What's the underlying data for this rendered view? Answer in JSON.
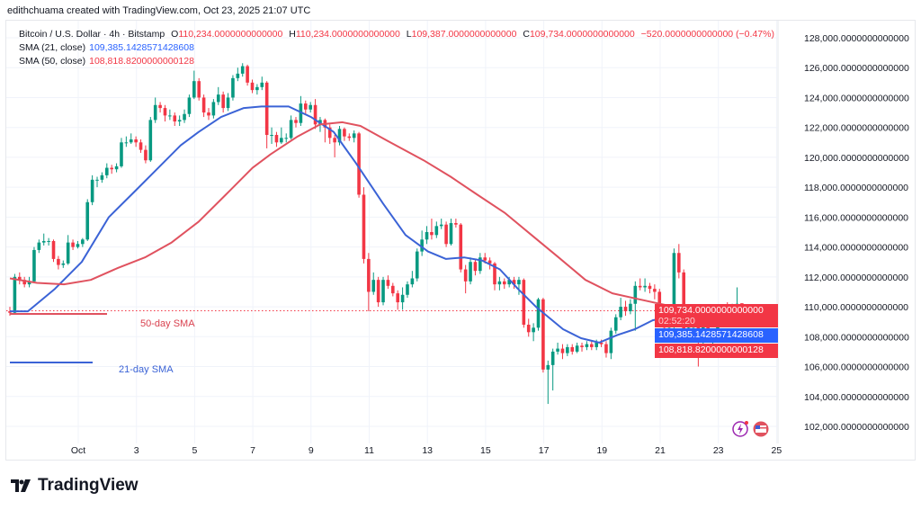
{
  "credit": "edithchuama created with TradingView.com, Oct 23, 2025 21:07 UTC",
  "legend": {
    "symbol": "Bitcoin / U.S. Dollar · 4h · Bitstamp",
    "o_label": "O",
    "o": "110,234.0000000000000",
    "h_label": "H",
    "h": "110,234.0000000000000",
    "l_label": "L",
    "l": "109,387.0000000000000",
    "c_label": "C",
    "c": "109,734.0000000000000",
    "change": "−520.0000000000000 (−0.47%)",
    "sma21_label": "SMA (21, close)",
    "sma21": "109,385.1428571428608",
    "sma50_label": "SMA (50, close)",
    "sma50": "108,818.8200000000128"
  },
  "price_boxes": {
    "last": "109,734.0000000000000",
    "countdown": "02:52:20",
    "sma21": "109,385.1428571428608",
    "sma50": "108,818.8200000000128"
  },
  "annotations": {
    "sma50": "50-day SMA",
    "sma21": "21-day SMA"
  },
  "logo": "TradingView",
  "colors": {
    "up": "#089981",
    "down": "#f23645",
    "sma21": "#3b63d6",
    "sma50": "#e0525f"
  },
  "chart_data": {
    "type": "candlestick",
    "title": "Bitcoin / U.S. Dollar · 4h · Bitstamp",
    "unit": "thousand USD",
    "interval_hours": 4,
    "first_candle_day": -1.33,
    "ylim": [
      101,
      129
    ],
    "y_ticks": [
      102,
      104,
      106,
      108,
      110,
      112,
      114,
      116,
      118,
      120,
      122,
      124,
      126,
      128
    ],
    "y_tick_labels": [
      "102,000.0000000000000",
      "104,000.0000000000000",
      "106,000.0000000000000",
      "108,000.0000000000000",
      "110,000.0000000000000",
      "112,000.0000000000000",
      "114,000.0000000000000",
      "116,000.0000000000000",
      "118,000.0000000000000",
      "120,000.0000000000000",
      "122,000.0000000000000",
      "124,000.0000000000000",
      "126,000.0000000000000",
      "128,000.0000000000000"
    ],
    "x_ticks": [
      1,
      3,
      5,
      7,
      9,
      11,
      13,
      15,
      17,
      19,
      21,
      23,
      25
    ],
    "x_tick_labels": [
      "Oct",
      "3",
      "5",
      "7",
      "9",
      "11",
      "13",
      "15",
      "17",
      "19",
      "21",
      "23",
      "25"
    ],
    "last_price": 109.734,
    "ohlc": [
      [
        109.7,
        110.0,
        109.4,
        109.6
      ],
      [
        109.6,
        112.2,
        109.5,
        112.0
      ],
      [
        112.0,
        112.3,
        111.5,
        111.8
      ],
      [
        111.8,
        112.0,
        111.3,
        111.5
      ],
      [
        111.5,
        112.0,
        111.3,
        111.7
      ],
      [
        111.7,
        114.0,
        111.6,
        113.8
      ],
      [
        113.8,
        114.5,
        113.6,
        114.3
      ],
      [
        114.3,
        114.9,
        114.1,
        114.4
      ],
      [
        114.4,
        114.6,
        114.1,
        114.4
      ],
      [
        114.4,
        114.5,
        113.0,
        113.2
      ],
      [
        113.2,
        113.4,
        112.5,
        112.8
      ],
      [
        112.8,
        113.1,
        112.6,
        112.9
      ],
      [
        112.9,
        114.8,
        112.8,
        114.3
      ],
      [
        114.3,
        114.5,
        113.8,
        114.0
      ],
      [
        114.0,
        114.4,
        113.9,
        114.2
      ],
      [
        114.2,
        114.6,
        114.0,
        114.5
      ],
      [
        114.5,
        117.2,
        114.4,
        117.0
      ],
      [
        117.0,
        118.8,
        116.8,
        118.5
      ],
      [
        118.5,
        118.7,
        118.0,
        118.5
      ],
      [
        118.5,
        119.0,
        118.3,
        118.8
      ],
      [
        118.8,
        119.6,
        118.6,
        119.3
      ],
      [
        119.3,
        119.5,
        118.9,
        119.2
      ],
      [
        119.2,
        119.6,
        119.0,
        119.4
      ],
      [
        119.4,
        121.3,
        119.3,
        121.0
      ],
      [
        121.0,
        121.4,
        120.7,
        121.0
      ],
      [
        121.0,
        121.6,
        120.9,
        121.2
      ],
      [
        121.2,
        121.4,
        120.7,
        121.0
      ],
      [
        121.0,
        121.2,
        120.3,
        120.5
      ],
      [
        120.5,
        120.8,
        119.6,
        119.8
      ],
      [
        119.8,
        122.7,
        119.7,
        122.5
      ],
      [
        122.5,
        124.0,
        122.3,
        123.5
      ],
      [
        123.5,
        123.7,
        123.0,
        123.3
      ],
      [
        123.3,
        123.5,
        122.4,
        122.8
      ],
      [
        122.8,
        123.2,
        122.5,
        122.8
      ],
      [
        122.8,
        123.0,
        122.1,
        122.4
      ],
      [
        122.4,
        122.8,
        122.1,
        122.5
      ],
      [
        122.5,
        123.2,
        122.3,
        122.9
      ],
      [
        122.9,
        124.2,
        122.7,
        124.0
      ],
      [
        124.0,
        125.8,
        123.9,
        125.1
      ],
      [
        125.1,
        125.3,
        123.8,
        124.0
      ],
      [
        124.0,
        124.2,
        122.7,
        123.0
      ],
      [
        123.0,
        123.3,
        122.5,
        122.8
      ],
      [
        122.8,
        123.9,
        122.6,
        123.7
      ],
      [
        123.7,
        124.7,
        123.5,
        124.2
      ],
      [
        124.2,
        124.4,
        123.0,
        123.3
      ],
      [
        123.3,
        124.3,
        123.1,
        124.0
      ],
      [
        124.0,
        125.5,
        123.8,
        125.3
      ],
      [
        125.3,
        126.0,
        125.1,
        125.6
      ],
      [
        125.6,
        126.3,
        125.4,
        126.1
      ],
      [
        126.1,
        126.2,
        124.8,
        125.0
      ],
      [
        125.0,
        125.2,
        124.3,
        124.5
      ],
      [
        124.5,
        124.9,
        124.2,
        124.7
      ],
      [
        124.7,
        125.4,
        124.5,
        125.0
      ],
      [
        125.0,
        125.1,
        120.6,
        121.5
      ],
      [
        121.5,
        122.0,
        120.9,
        121.5
      ],
      [
        121.5,
        121.7,
        120.7,
        121.0
      ],
      [
        121.0,
        122.0,
        120.9,
        121.3
      ],
      [
        121.3,
        121.6,
        121.0,
        121.3
      ],
      [
        121.3,
        122.8,
        121.2,
        122.5
      ],
      [
        122.5,
        122.7,
        122.0,
        122.3
      ],
      [
        122.3,
        124.1,
        122.1,
        123.6
      ],
      [
        123.6,
        123.8,
        122.9,
        123.2
      ],
      [
        123.2,
        123.7,
        123.0,
        123.5
      ],
      [
        123.5,
        123.9,
        121.9,
        122.2
      ],
      [
        122.2,
        122.7,
        121.7,
        122.5
      ],
      [
        122.5,
        122.6,
        121.0,
        122.0
      ],
      [
        122.0,
        122.2,
        120.9,
        121.3
      ],
      [
        121.3,
        121.5,
        120.0,
        121.0
      ],
      [
        121.0,
        122.1,
        120.8,
        121.9
      ],
      [
        121.9,
        122.0,
        121.1,
        121.4
      ],
      [
        121.4,
        121.6,
        121.1,
        121.3
      ],
      [
        121.3,
        121.8,
        121.0,
        121.6
      ],
      [
        121.6,
        121.7,
        117.3,
        117.5
      ],
      [
        117.5,
        118.0,
        112.9,
        113.2
      ],
      [
        113.2,
        113.6,
        109.7,
        111.0
      ],
      [
        111.0,
        112.3,
        110.8,
        111.8
      ],
      [
        111.8,
        112.0,
        110.0,
        110.3
      ],
      [
        110.3,
        112.0,
        110.1,
        111.8
      ],
      [
        111.8,
        112.1,
        111.2,
        111.4
      ],
      [
        111.4,
        111.6,
        110.7,
        110.9
      ],
      [
        110.9,
        111.1,
        109.8,
        110.3
      ],
      [
        110.3,
        111.3,
        109.8,
        110.8
      ],
      [
        110.8,
        111.7,
        110.6,
        111.5
      ],
      [
        111.5,
        112.4,
        111.3,
        111.9
      ],
      [
        111.9,
        113.9,
        111.7,
        113.7
      ],
      [
        113.7,
        115.1,
        113.4,
        114.5
      ],
      [
        114.5,
        115.4,
        114.2,
        115.0
      ],
      [
        115.0,
        115.9,
        114.5,
        114.8
      ],
      [
        114.8,
        115.7,
        114.6,
        115.4
      ],
      [
        115.4,
        115.9,
        115.2,
        115.5
      ],
      [
        115.5,
        115.7,
        114.0,
        114.2
      ],
      [
        114.2,
        115.9,
        114.1,
        115.6
      ],
      [
        115.6,
        115.9,
        115.3,
        115.5
      ],
      [
        115.5,
        115.6,
        112.3,
        112.5
      ],
      [
        112.5,
        112.8,
        110.9,
        111.7
      ],
      [
        111.7,
        113.3,
        111.5,
        113.0
      ],
      [
        113.0,
        113.2,
        112.1,
        112.4
      ],
      [
        112.4,
        113.6,
        112.2,
        113.3
      ],
      [
        113.3,
        113.6,
        112.9,
        113.1
      ],
      [
        113.1,
        113.3,
        112.5,
        112.9
      ],
      [
        112.9,
        113.0,
        111.1,
        111.5
      ],
      [
        111.5,
        112.0,
        111.1,
        111.7
      ],
      [
        111.7,
        111.9,
        111.2,
        111.5
      ],
      [
        111.5,
        112.0,
        111.3,
        111.8
      ],
      [
        111.8,
        112.0,
        111.2,
        111.5
      ],
      [
        111.5,
        112.0,
        110.8,
        111.8
      ],
      [
        111.8,
        111.9,
        108.6,
        108.8
      ],
      [
        108.8,
        109.2,
        108.0,
        108.3
      ],
      [
        108.3,
        108.9,
        107.7,
        108.6
      ],
      [
        108.6,
        110.6,
        108.4,
        110.5
      ],
      [
        110.5,
        110.6,
        105.6,
        105.8
      ],
      [
        105.8,
        106.4,
        103.5,
        106.1
      ],
      [
        106.1,
        107.2,
        104.4,
        107.0
      ],
      [
        107.0,
        107.6,
        106.8,
        107.2
      ],
      [
        107.2,
        107.5,
        106.5,
        106.9
      ],
      [
        106.9,
        107.5,
        106.7,
        107.3
      ],
      [
        107.3,
        107.5,
        106.8,
        107.0
      ],
      [
        107.0,
        107.6,
        106.9,
        107.4
      ],
      [
        107.4,
        107.6,
        107.0,
        107.3
      ],
      [
        107.3,
        107.7,
        107.1,
        107.5
      ],
      [
        107.5,
        107.7,
        107.1,
        107.3
      ],
      [
        107.3,
        107.8,
        107.1,
        107.6
      ],
      [
        107.6,
        107.8,
        107.3,
        107.5
      ],
      [
        107.5,
        107.7,
        106.6,
        106.9
      ],
      [
        106.9,
        108.6,
        106.5,
        108.4
      ],
      [
        108.4,
        109.5,
        108.2,
        109.3
      ],
      [
        109.3,
        110.6,
        109.1,
        110.0
      ],
      [
        110.0,
        110.4,
        109.4,
        109.7
      ],
      [
        109.7,
        110.5,
        109.5,
        110.2
      ],
      [
        110.2,
        111.7,
        108.4,
        111.4
      ],
      [
        111.4,
        111.9,
        111.1,
        111.3
      ],
      [
        111.3,
        111.9,
        111.0,
        111.4
      ],
      [
        111.4,
        111.6,
        110.9,
        111.2
      ],
      [
        111.2,
        111.5,
        110.5,
        111.0
      ],
      [
        111.0,
        111.2,
        109.0,
        109.2
      ],
      [
        109.2,
        109.5,
        108.2,
        108.6
      ],
      [
        108.6,
        109.8,
        108.4,
        109.4
      ],
      [
        109.4,
        113.9,
        108.4,
        113.6
      ],
      [
        113.6,
        114.2,
        111.9,
        112.3
      ],
      [
        112.3,
        112.5,
        108.1,
        108.4
      ],
      [
        108.4,
        108.9,
        107.9,
        108.6
      ],
      [
        108.6,
        109.0,
        108.2,
        108.8
      ],
      [
        108.8,
        109.0,
        106.0,
        107.7
      ],
      [
        107.7,
        109.0,
        107.5,
        108.8
      ],
      [
        108.8,
        109.0,
        107.8,
        108.2
      ],
      [
        108.2,
        108.5,
        106.7,
        108.2
      ],
      [
        108.2,
        109.3,
        108.0,
        108.9
      ],
      [
        108.9,
        109.9,
        108.7,
        109.5
      ],
      [
        109.5,
        110.3,
        109.1,
        109.3
      ],
      [
        109.3,
        110.2,
        109.0,
        110.0
      ],
      [
        110.0,
        111.3,
        109.8,
        110.2
      ],
      [
        110.234,
        110.234,
        109.387,
        109.734
      ]
    ],
    "series": [
      {
        "name": "SMA (21, close)",
        "points": [
          [
            -1.35,
            109.7
          ],
          [
            -0.73,
            109.7
          ],
          [
            0.2,
            111.2
          ],
          [
            1.12,
            113.0
          ],
          [
            2.05,
            116.0
          ],
          [
            2.98,
            117.8
          ],
          [
            3.75,
            119.3
          ],
          [
            4.52,
            120.8
          ],
          [
            5.14,
            121.7
          ],
          [
            5.91,
            122.7
          ],
          [
            6.69,
            123.3
          ],
          [
            7.3,
            123.4
          ],
          [
            8.23,
            123.4
          ],
          [
            9.0,
            122.7
          ],
          [
            9.78,
            121.7
          ],
          [
            10.55,
            119.6
          ],
          [
            11.48,
            116.9
          ],
          [
            12.25,
            114.8
          ],
          [
            13.02,
            113.7
          ],
          [
            13.64,
            113.2
          ],
          [
            14.26,
            113.3
          ],
          [
            14.88,
            113.1
          ],
          [
            15.49,
            112.5
          ],
          [
            16.11,
            111.2
          ],
          [
            16.73,
            110.0
          ],
          [
            17.66,
            108.5
          ],
          [
            18.28,
            107.9
          ],
          [
            18.9,
            107.6
          ],
          [
            19.52,
            108.1
          ],
          [
            20.13,
            108.5
          ],
          [
            20.75,
            109.1
          ],
          [
            21.68,
            109.4
          ],
          [
            22.61,
            109.4
          ],
          [
            23.07,
            109.39
          ]
        ]
      },
      {
        "name": "SMA (50, close)",
        "points": [
          [
            -1.35,
            111.9
          ],
          [
            -0.42,
            111.6
          ],
          [
            0.51,
            111.5
          ],
          [
            1.43,
            111.8
          ],
          [
            2.36,
            112.6
          ],
          [
            3.29,
            113.3
          ],
          [
            4.21,
            114.3
          ],
          [
            5.14,
            115.7
          ],
          [
            6.07,
            117.5
          ],
          [
            6.99,
            119.3
          ],
          [
            7.61,
            120.2
          ],
          [
            8.54,
            121.4
          ],
          [
            9.31,
            122.2
          ],
          [
            10.08,
            122.35
          ],
          [
            10.7,
            122.1
          ],
          [
            11.63,
            121.1
          ],
          [
            12.87,
            119.8
          ],
          [
            13.8,
            118.7
          ],
          [
            14.72,
            117.5
          ],
          [
            15.65,
            116.3
          ],
          [
            16.58,
            114.8
          ],
          [
            17.51,
            113.3
          ],
          [
            18.43,
            111.8
          ],
          [
            19.36,
            110.9
          ],
          [
            20.29,
            110.5
          ],
          [
            21.22,
            110.1
          ],
          [
            22.14,
            109.4
          ],
          [
            23.07,
            108.82
          ]
        ]
      }
    ]
  }
}
